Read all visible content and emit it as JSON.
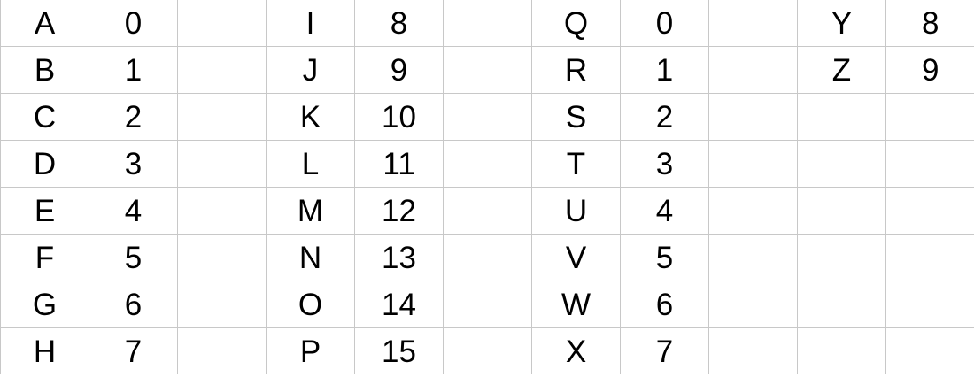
{
  "sheet": {
    "rows": [
      [
        "A",
        "0",
        "",
        "I",
        "8",
        "",
        "Q",
        "0",
        "",
        "Y",
        "8"
      ],
      [
        "B",
        "1",
        "",
        "J",
        "9",
        "",
        "R",
        "1",
        "",
        "Z",
        "9"
      ],
      [
        "C",
        "2",
        "",
        "K",
        "10",
        "",
        "S",
        "2",
        "",
        "",
        ""
      ],
      [
        "D",
        "3",
        "",
        "L",
        "11",
        "",
        "T",
        "3",
        "",
        "",
        ""
      ],
      [
        "E",
        "4",
        "",
        "M",
        "12",
        "",
        "U",
        "4",
        "",
        "",
        ""
      ],
      [
        "F",
        "5",
        "",
        "N",
        "13",
        "",
        "V",
        "5",
        "",
        "",
        ""
      ],
      [
        "G",
        "6",
        "",
        "O",
        "14",
        "",
        "W",
        "6",
        "",
        "",
        ""
      ],
      [
        "H",
        "7",
        "",
        "P",
        "15",
        "",
        "X",
        "7",
        "",
        "",
        ""
      ]
    ]
  },
  "colors": {
    "gridline": "#c8c8c8",
    "text": "#000000",
    "background": "#ffffff"
  }
}
